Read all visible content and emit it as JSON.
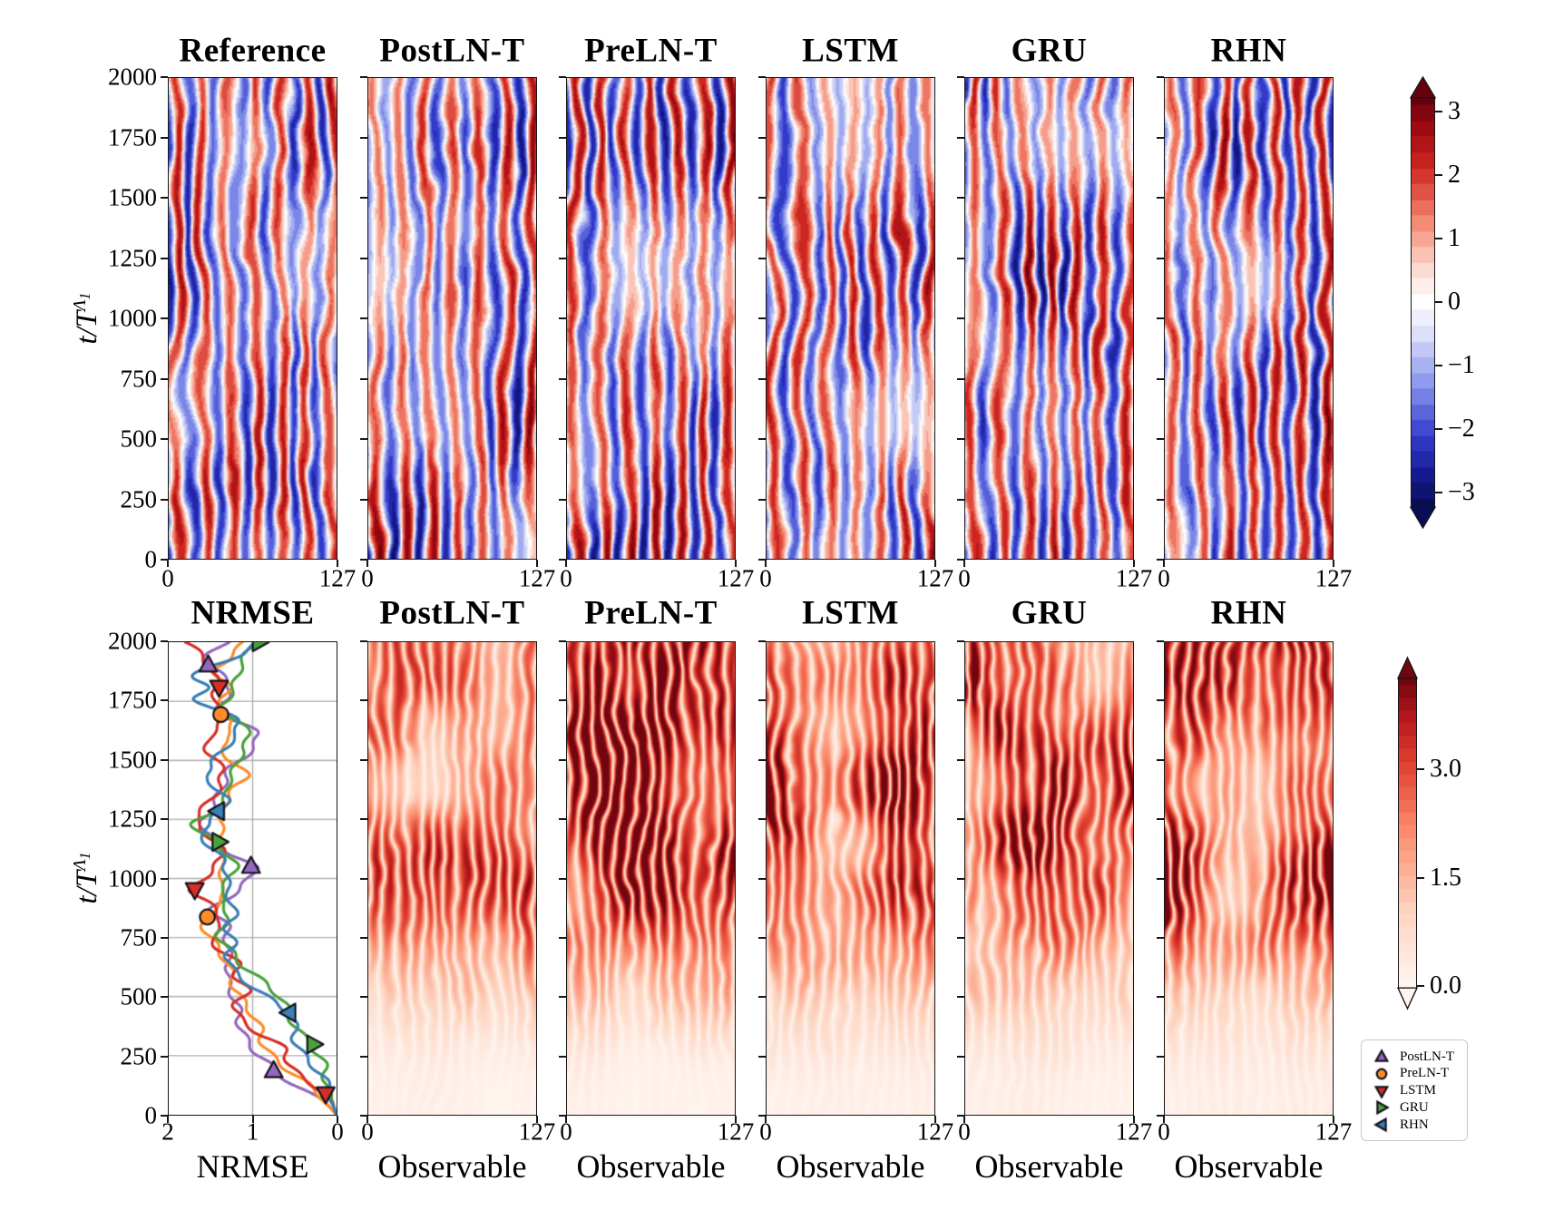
{
  "figure": {
    "background": "#ffffff",
    "top_row": {
      "ylabel": {
        "base": "t/T",
        "sup": "Λ",
        "sub": "1"
      },
      "ytick_labels": [
        "2000",
        "1750",
        "1500",
        "1250",
        "1000",
        "750",
        "500",
        "250",
        "0"
      ],
      "xtick_labels": [
        "0",
        "127"
      ],
      "panels": [
        {
          "title": "Reference",
          "seed": 5
        },
        {
          "title": "PostLN-T",
          "seed": 23
        },
        {
          "title": "PreLN-T",
          "seed": 37
        },
        {
          "title": "LSTM",
          "seed": 51
        },
        {
          "title": "GRU",
          "seed": 65
        },
        {
          "title": "RHN",
          "seed": 79
        }
      ],
      "colorbar": {
        "tick_labels": [
          "3",
          "2",
          "1",
          "0",
          "−1",
          "−2",
          "−3"
        ],
        "tick_values": [
          3,
          2,
          1,
          0,
          -1,
          -2,
          -3
        ]
      }
    },
    "bottom_row": {
      "ylabel": {
        "base": "t/T",
        "sup": "Λ",
        "sub": "1"
      },
      "ytick_labels": [
        "2000",
        "1750",
        "1500",
        "1250",
        "1000",
        "750",
        "500",
        "250",
        "0"
      ],
      "xtick_labels": [
        "0",
        "127"
      ],
      "nrmse_xtick_labels": [
        "2",
        "1",
        "0"
      ],
      "panels": [
        {
          "title": "NRMSE",
          "xlabel": "NRMSE",
          "type": "line"
        },
        {
          "title": "PostLN-T",
          "xlabel": "Observable",
          "type": "heatmap",
          "seed": 101
        },
        {
          "title": "PreLN-T",
          "xlabel": "Observable",
          "type": "heatmap",
          "seed": 113
        },
        {
          "title": "LSTM",
          "xlabel": "Observable",
          "type": "heatmap",
          "seed": 127
        },
        {
          "title": "GRU",
          "xlabel": "Observable",
          "type": "heatmap",
          "seed": 139
        },
        {
          "title": "RHN",
          "xlabel": "Observable",
          "type": "heatmap",
          "seed": 151
        }
      ],
      "colorbar": {
        "tick_labels": [
          "3.0",
          "1.5",
          "0.0"
        ],
        "tick_values": [
          3,
          1.5,
          0
        ]
      },
      "legend": {
        "entries": [
          {
            "label": "PostLN-T",
            "marker": "triangle-up",
            "color": "#9467bd"
          },
          {
            "label": "PreLN-T",
            "marker": "circle",
            "color": "#ff8c27"
          },
          {
            "label": "LSTM",
            "marker": "triangle-down",
            "color": "#d62f28"
          },
          {
            "label": "GRU",
            "marker": "triangle-right",
            "color": "#4aa13c"
          },
          {
            "label": "RHN",
            "marker": "triangle-left",
            "color": "#3a7fb5"
          }
        ]
      }
    }
  },
  "chart_data": {
    "nrmse_plot": {
      "type": "line",
      "title": "NRMSE",
      "xlabel": "NRMSE",
      "ylabel": "t/T^{Λ_1}",
      "x_range": [
        2,
        0
      ],
      "y_range": [
        0,
        2000
      ],
      "grid": true,
      "series": [
        {
          "name": "PostLN-T",
          "color": "#9467bd",
          "marker": "triangle-up",
          "points": [
            [
              0,
              0
            ],
            [
              60,
              0.12
            ],
            [
              120,
              0.45
            ],
            [
              187,
              0.75
            ],
            [
              250,
              0.92
            ],
            [
              320,
              1.05
            ],
            [
              400,
              1.18
            ],
            [
              480,
              1.28
            ],
            [
              560,
              1.3
            ],
            [
              640,
              1.22
            ],
            [
              720,
              1.33
            ],
            [
              800,
              1.28
            ],
            [
              870,
              1.44
            ],
            [
              950,
              1.18
            ],
            [
              1052,
              1.02
            ],
            [
              1120,
              1.32
            ],
            [
              1180,
              1.5
            ],
            [
              1250,
              1.64
            ],
            [
              1320,
              1.44
            ],
            [
              1400,
              1.28
            ],
            [
              1480,
              1.22
            ],
            [
              1560,
              1.02
            ],
            [
              1620,
              0.95
            ],
            [
              1680,
              1.3
            ],
            [
              1720,
              1.44
            ],
            [
              1780,
              1.32
            ],
            [
              1840,
              1.3
            ],
            [
              1904,
              1.53
            ],
            [
              1950,
              1.45
            ],
            [
              2000,
              1.28
            ]
          ],
          "markers": [
            [
              187,
              0.75
            ],
            [
              1052,
              1.02
            ],
            [
              1904,
              1.53
            ]
          ]
        },
        {
          "name": "PreLN-T",
          "color": "#ff8c27",
          "marker": "circle",
          "points": [
            [
              0,
              0
            ],
            [
              70,
              0.18
            ],
            [
              150,
              0.42
            ],
            [
              230,
              0.66
            ],
            [
              300,
              0.84
            ],
            [
              380,
              0.98
            ],
            [
              460,
              1.1
            ],
            [
              540,
              1.2
            ],
            [
              620,
              1.32
            ],
            [
              700,
              1.42
            ],
            [
              770,
              1.48
            ],
            [
              837,
              1.54
            ],
            [
              900,
              1.34
            ],
            [
              970,
              1.44
            ],
            [
              1040,
              1.32
            ],
            [
              1120,
              1.42
            ],
            [
              1200,
              1.46
            ],
            [
              1280,
              1.34
            ],
            [
              1360,
              1.22
            ],
            [
              1430,
              1.05
            ],
            [
              1500,
              1.26
            ],
            [
              1550,
              1.4
            ],
            [
              1620,
              1.18
            ],
            [
              1694,
              1.38
            ],
            [
              1760,
              1.44
            ],
            [
              1820,
              1.28
            ],
            [
              1880,
              1.42
            ],
            [
              1940,
              1.25
            ],
            [
              2000,
              1.1
            ]
          ],
          "markers": [
            [
              837,
              1.54
            ],
            [
              1694,
              1.38
            ]
          ]
        },
        {
          "name": "LSTM",
          "color": "#d62f28",
          "marker": "triangle-down",
          "points": [
            [
              0,
              0
            ],
            [
              88,
              0.13
            ],
            [
              160,
              0.38
            ],
            [
              220,
              0.52
            ],
            [
              280,
              0.62
            ],
            [
              340,
              0.92
            ],
            [
              400,
              1.12
            ],
            [
              460,
              1.2
            ],
            [
              520,
              1.08
            ],
            [
              580,
              1.28
            ],
            [
              640,
              1.18
            ],
            [
              700,
              1.36
            ],
            [
              760,
              1.46
            ],
            [
              820,
              1.36
            ],
            [
              880,
              1.48
            ],
            [
              952,
              1.69
            ],
            [
              1020,
              1.5
            ],
            [
              1100,
              1.4
            ],
            [
              1180,
              1.56
            ],
            [
              1250,
              1.68
            ],
            [
              1320,
              1.52
            ],
            [
              1390,
              1.42
            ],
            [
              1460,
              1.3
            ],
            [
              1530,
              1.46
            ],
            [
              1600,
              1.54
            ],
            [
              1670,
              1.4
            ],
            [
              1740,
              1.48
            ],
            [
              1809,
              1.4
            ],
            [
              1870,
              1.5
            ],
            [
              1930,
              1.62
            ],
            [
              2000,
              1.76
            ]
          ],
          "markers": [
            [
              88,
              0.13
            ],
            [
              952,
              1.69
            ],
            [
              1809,
              1.4
            ]
          ]
        },
        {
          "name": "GRU",
          "color": "#4aa13c",
          "marker": "triangle-right",
          "points": [
            [
              0,
              0
            ],
            [
              100,
              0.08
            ],
            [
              200,
              0.16
            ],
            [
              298,
              0.27
            ],
            [
              380,
              0.44
            ],
            [
              450,
              0.62
            ],
            [
              520,
              0.78
            ],
            [
              590,
              0.98
            ],
            [
              660,
              1.18
            ],
            [
              720,
              1.36
            ],
            [
              760,
              1.46
            ],
            [
              820,
              1.32
            ],
            [
              880,
              1.22
            ],
            [
              940,
              1.36
            ],
            [
              1000,
              1.28
            ],
            [
              1060,
              1.24
            ],
            [
              1100,
              1.3
            ],
            [
              1155,
              1.4
            ],
            [
              1200,
              1.66
            ],
            [
              1235,
              1.74
            ],
            [
              1290,
              1.5
            ],
            [
              1350,
              1.32
            ],
            [
              1420,
              1.24
            ],
            [
              1490,
              1.1
            ],
            [
              1550,
              1.16
            ],
            [
              1610,
              1.0
            ],
            [
              1670,
              1.2
            ],
            [
              1720,
              1.36
            ],
            [
              1780,
              1.3
            ],
            [
              1840,
              1.26
            ],
            [
              1900,
              1.2
            ],
            [
              1950,
              1.04
            ],
            [
              2000,
              0.92
            ]
          ],
          "markers": [
            [
              298,
              0.27
            ],
            [
              1155,
              1.4
            ],
            [
              2000,
              0.92
            ]
          ]
        },
        {
          "name": "RHN",
          "color": "#3a7fb5",
          "marker": "triangle-left",
          "points": [
            [
              0,
              0
            ],
            [
              100,
              0.12
            ],
            [
              200,
              0.26
            ],
            [
              300,
              0.42
            ],
            [
              370,
              0.5
            ],
            [
              432,
              0.57
            ],
            [
              500,
              0.82
            ],
            [
              560,
              1.04
            ],
            [
              620,
              1.3
            ],
            [
              670,
              1.38
            ],
            [
              720,
              1.26
            ],
            [
              780,
              1.3
            ],
            [
              840,
              1.16
            ],
            [
              900,
              1.24
            ],
            [
              960,
              1.34
            ],
            [
              1020,
              1.26
            ],
            [
              1080,
              1.3
            ],
            [
              1140,
              1.52
            ],
            [
              1200,
              1.7
            ],
            [
              1250,
              1.56
            ],
            [
              1285,
              1.42
            ],
            [
              1330,
              1.28
            ],
            [
              1390,
              1.42
            ],
            [
              1440,
              1.6
            ],
            [
              1500,
              1.48
            ],
            [
              1560,
              1.28
            ],
            [
              1620,
              1.1
            ],
            [
              1670,
              1.12
            ],
            [
              1720,
              1.5
            ],
            [
              1760,
              1.76
            ],
            [
              1810,
              1.58
            ],
            [
              1850,
              1.74
            ],
            [
              1900,
              1.48
            ],
            [
              1950,
              1.12
            ],
            [
              2000,
              0.95
            ]
          ],
          "markers": [
            [
              432,
              0.57
            ],
            [
              1285,
              1.42
            ]
          ]
        }
      ]
    },
    "top_row_heatmaps": {
      "type": "heatmap",
      "colormap": "red-blue diverging (seismic-like, discretized)",
      "x_range": [
        0,
        127
      ],
      "y_range": [
        0,
        2000
      ],
      "value_range": [
        -3.25,
        3.25
      ],
      "colorbar_ticks": [
        3,
        2,
        1,
        0,
        -1,
        -2,
        -3
      ],
      "panels": [
        "Reference",
        "PostLN-T",
        "PreLN-T",
        "LSTM",
        "GRU",
        "RHN"
      ]
    },
    "bottom_row_heatmaps": {
      "type": "heatmap",
      "colormap": "Reds (discretized)",
      "x_range": [
        0,
        127
      ],
      "y_range": [
        0,
        2000
      ],
      "value_range": [
        0,
        4.3
      ],
      "colorbar_ticks": [
        3.0,
        1.5,
        0.0
      ],
      "xlabel": "Observable",
      "panels": [
        "PostLN-T",
        "PreLN-T",
        "LSTM",
        "GRU",
        "RHN"
      ]
    }
  }
}
